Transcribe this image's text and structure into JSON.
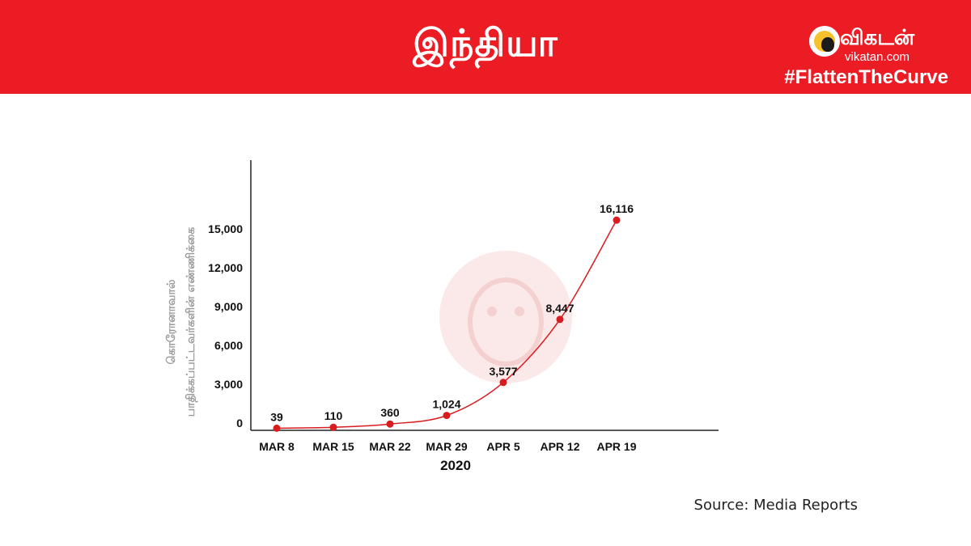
{
  "header": {
    "title": "இந்தியா",
    "brand_name": "விகடன்",
    "brand_url": "vikatan.com",
    "hashtag": "#FlattenTheCurve"
  },
  "source": "Source: Media Reports",
  "colors": {
    "banner": "#ec1c24",
    "series": "#d81c20",
    "axis": "#222222"
  },
  "chart_data": {
    "type": "line",
    "categories": [
      "MAR 8",
      "MAR 15",
      "MAR 22",
      "MAR 29",
      "APR 5",
      "APR 12",
      "APR 19"
    ],
    "series": [
      {
        "values": [
          39,
          110,
          360,
          1024,
          3577,
          8447,
          16116
        ]
      }
    ],
    "data_labels": [
      "39",
      "110",
      "360",
      "1,024",
      "3,577",
      "8,447",
      "16,116"
    ],
    "yticks": [
      0,
      3000,
      6000,
      9000,
      12000,
      15000
    ],
    "ytick_labels": [
      "0",
      "3,000",
      "6,000",
      "9,000",
      "12,000",
      "15,000"
    ],
    "ylim": [
      0,
      20000
    ],
    "xlabel": "2020",
    "ylabel_lines": [
      "கொரோனாவால்",
      "பாதிக்கப்பட்டவர்களின் எண்ணிக்கை"
    ],
    "grid": false,
    "legend": "none"
  }
}
